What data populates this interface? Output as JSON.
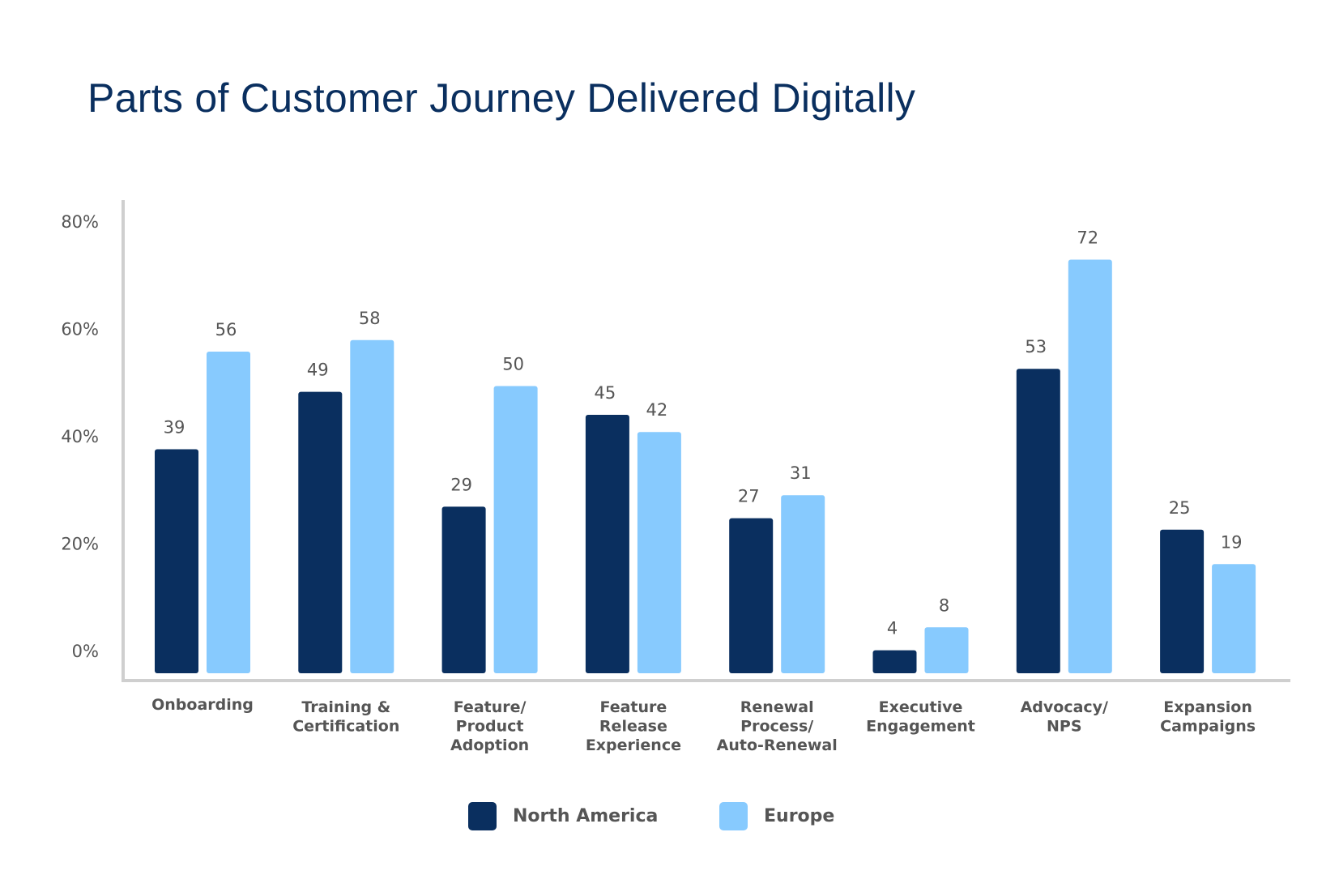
{
  "chart_data": {
    "type": "bar",
    "title": "Parts of Customer Journey Delivered Digitally",
    "xlabel": "",
    "ylabel": "",
    "ylim": [
      0,
      80
    ],
    "yticks": [
      "0%",
      "20%",
      "40%",
      "60%",
      "80%"
    ],
    "ytick_values": [
      0,
      20,
      40,
      60,
      80
    ],
    "grid": false,
    "legend_placement": "bottom",
    "categories": [
      [
        "Onboarding"
      ],
      [
        "Training &",
        "Certification"
      ],
      [
        "Feature/",
        "Product",
        "Adoption"
      ],
      [
        "Feature",
        "Release",
        "Experience"
      ],
      [
        "Renewal",
        "Process/",
        "Auto-Renewal"
      ],
      [
        "Executive",
        "Engagement"
      ],
      [
        "Advocacy/",
        "NPS"
      ],
      [
        "Expansion",
        "Campaigns"
      ]
    ],
    "series": [
      {
        "name": "North America",
        "color": "#0a2f5f",
        "values": [
          39,
          49,
          29,
          45,
          27,
          4,
          53,
          25
        ]
      },
      {
        "name": "Europe",
        "color": "#87cafe",
        "values": [
          56,
          58,
          50,
          42,
          31,
          8,
          72,
          19
        ]
      }
    ]
  }
}
